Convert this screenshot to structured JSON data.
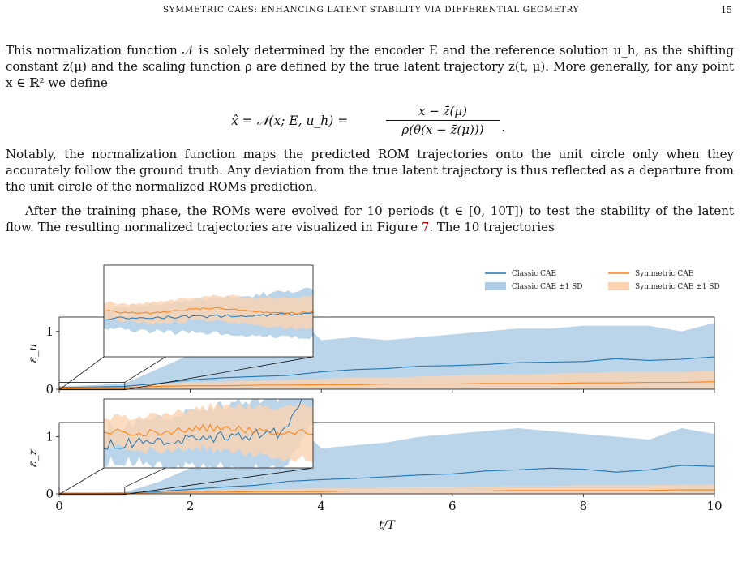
{
  "header": {
    "running_title": "SYMMETRIC CAES: ENHANCING LATENT STABILITY VIA DIFFERENTIAL GEOMETRY",
    "page_number": "15"
  },
  "text": {
    "para1": "This normalization function 𝒩 is solely determined by the encoder E and the reference solution u_h, as the shifting constant z̄(μ) and the scaling function ρ are defined by the true latent trajectory z(t, μ). More generally, for any point x ∈ ℝ² we define",
    "equation_lhs": "x̂ = 𝒩(x; E, u_h) =",
    "equation_num": "x − z̄(μ)",
    "equation_den": "ρ(θ(x − z̄(μ)))",
    "equation_end": ".",
    "para2": "Notably, the normalization function maps the predicted ROM trajectories onto the unit circle only when they accurately follow the ground truth. Any deviation from the true latent trajectory is thus reflected as a departure from the unit circle of the normalized ROMs prediction.",
    "para3_a": "After the training phase, the ROMs were evolved for 10 periods (t ∈ [0, 10T]) to test the stability of the latent flow. The resulting normalized trajectories are visualized in Figure ",
    "para3_ref": "7",
    "para3_b": ". The 10 trajectories"
  },
  "colors": {
    "classic": "#1f77b4",
    "classic_band": "#aecde5",
    "symmetric": "#ff7f0e",
    "symmetric_band": "#fbd3b1"
  },
  "chart_data": [
    {
      "type": "line",
      "ylabel": "ε_u",
      "xlabel": "t/T",
      "xlim": [
        0,
        10
      ],
      "ylim": [
        0,
        1.25
      ],
      "yticks": [
        "0",
        "1"
      ],
      "xticks": [],
      "legend": [
        "Classic CAE",
        "Classic CAE ±1 SD",
        "Symmetric CAE",
        "Symmetric CAE ±1 SD"
      ],
      "legend_position": "top-right",
      "x": [
        0,
        0.5,
        1,
        1.5,
        2,
        2.5,
        3,
        3.5,
        4,
        4.5,
        5,
        5.5,
        6,
        6.5,
        7,
        7.5,
        8,
        8.5,
        9,
        9.5,
        10
      ],
      "series": [
        {
          "name": "Classic CAE",
          "values": [
            0.03,
            0.04,
            0.05,
            0.1,
            0.16,
            0.2,
            0.22,
            0.24,
            0.3,
            0.34,
            0.36,
            0.4,
            0.41,
            0.43,
            0.46,
            0.47,
            0.48,
            0.53,
            0.5,
            0.52,
            0.56
          ]
        },
        {
          "name": "Symmetric CAE",
          "values": [
            0.02,
            0.03,
            0.03,
            0.05,
            0.06,
            0.06,
            0.07,
            0.07,
            0.08,
            0.08,
            0.09,
            0.09,
            0.09,
            0.1,
            0.1,
            0.1,
            0.11,
            0.11,
            0.12,
            0.12,
            0.13
          ]
        }
      ],
      "bands": [
        {
          "name": "Classic CAE ±1 SD",
          "lower": [
            0.0,
            0.0,
            0.0,
            0.0,
            0.0,
            0.0,
            0.0,
            0.0,
            0.0,
            0.0,
            0.0,
            0.0,
            0.0,
            0.0,
            0.0,
            0.0,
            0.0,
            0.0,
            0.0,
            0.0,
            0.0
          ],
          "upper": [
            0.05,
            0.07,
            0.1,
            0.35,
            0.6,
            0.8,
            1.0,
            1.4,
            0.85,
            0.9,
            0.85,
            0.9,
            0.95,
            1.0,
            1.05,
            1.05,
            1.1,
            1.1,
            1.1,
            1.0,
            1.15
          ]
        },
        {
          "name": "Symmetric CAE ±1 SD",
          "lower": [
            0.0,
            0.0,
            0.0,
            0.0,
            0.0,
            0.0,
            0.0,
            0.0,
            0.0,
            0.0,
            0.0,
            0.0,
            0.0,
            0.0,
            0.0,
            0.0,
            0.0,
            0.0,
            0.0,
            0.0,
            0.0
          ],
          "upper": [
            0.04,
            0.05,
            0.06,
            0.09,
            0.12,
            0.13,
            0.15,
            0.16,
            0.18,
            0.2,
            0.2,
            0.22,
            0.24,
            0.25,
            0.26,
            0.27,
            0.28,
            0.3,
            0.3,
            0.3,
            0.32
          ]
        }
      ]
    },
    {
      "type": "line",
      "ylabel": "ε_z",
      "xlabel": "t/T",
      "xlim": [
        0,
        10
      ],
      "ylim": [
        0,
        1.25
      ],
      "yticks": [
        "0",
        "1"
      ],
      "xticks": [
        "0",
        "2",
        "4",
        "6",
        "8",
        "10"
      ],
      "x": [
        0,
        0.5,
        1,
        1.5,
        2,
        2.5,
        3,
        3.5,
        4,
        4.5,
        5,
        5.5,
        6,
        6.5,
        7,
        7.5,
        8,
        8.5,
        9,
        9.5,
        10
      ],
      "series": [
        {
          "name": "Classic CAE",
          "values": [
            0.01,
            0.01,
            0.01,
            0.04,
            0.08,
            0.12,
            0.15,
            0.22,
            0.25,
            0.27,
            0.3,
            0.33,
            0.35,
            0.4,
            0.42,
            0.45,
            0.43,
            0.38,
            0.42,
            0.5,
            0.48
          ]
        },
        {
          "name": "Symmetric CAE",
          "values": [
            0.01,
            0.01,
            0.01,
            0.02,
            0.03,
            0.03,
            0.04,
            0.04,
            0.04,
            0.05,
            0.05,
            0.05,
            0.05,
            0.05,
            0.06,
            0.06,
            0.06,
            0.06,
            0.06,
            0.07,
            0.07
          ]
        }
      ],
      "bands": [
        {
          "name": "Classic CAE ±1 SD",
          "lower": [
            0.0,
            0.0,
            0.0,
            0.0,
            0.0,
            0.0,
            0.0,
            0.0,
            0.0,
            0.0,
            0.0,
            0.0,
            0.0,
            0.0,
            0.0,
            0.0,
            0.0,
            0.0,
            0.0,
            0.0,
            0.0
          ],
          "upper": [
            0.02,
            0.02,
            0.03,
            0.2,
            0.45,
            0.7,
            0.9,
            1.35,
            0.8,
            0.85,
            0.9,
            1.0,
            1.05,
            1.1,
            1.15,
            1.1,
            1.05,
            1.0,
            0.95,
            1.15,
            1.05
          ]
        },
        {
          "name": "Symmetric CAE ±1 SD",
          "lower": [
            0.0,
            0.0,
            0.0,
            0.0,
            0.0,
            0.0,
            0.0,
            0.0,
            0.0,
            0.0,
            0.0,
            0.0,
            0.0,
            0.0,
            0.0,
            0.0,
            0.0,
            0.0,
            0.0,
            0.0,
            0.0
          ],
          "upper": [
            0.02,
            0.02,
            0.02,
            0.04,
            0.06,
            0.07,
            0.08,
            0.09,
            0.1,
            0.1,
            0.11,
            0.12,
            0.12,
            0.13,
            0.14,
            0.14,
            0.15,
            0.15,
            0.15,
            0.16,
            0.17
          ]
        }
      ]
    }
  ]
}
